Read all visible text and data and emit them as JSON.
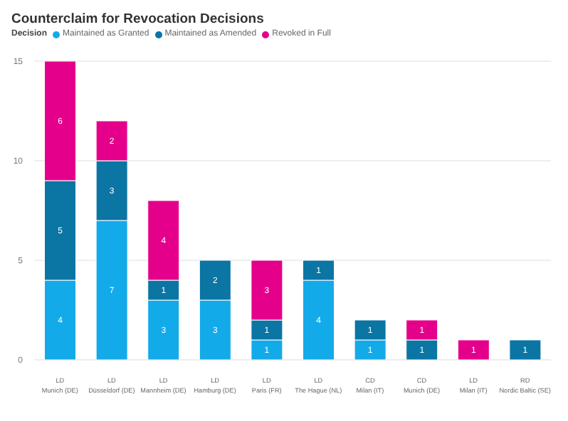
{
  "chart_data": {
    "type": "bar",
    "title": "Counterclaim for Revocation Decisions",
    "legend_title": "Decision",
    "legend": "top left",
    "categories": [
      "LD Munich (DE)",
      "LD Düsseldorf (DE)",
      "LD Mannheim (DE)",
      "LD Hamburg (DE)",
      "LD Paris (FR)",
      "LD The Hague (NL)",
      "CD Milan (IT)",
      "CD Munich (DE)",
      "LD Milan (IT)",
      "RD Nordic Baltic (SE)"
    ],
    "stacked": true,
    "data_labels": true,
    "grid": "y",
    "ylim": [
      0,
      15
    ],
    "yticks": [
      0,
      5,
      10,
      15
    ],
    "series": [
      {
        "name": "Maintained as Granted",
        "color": "#13aaea",
        "values": [
          4,
          7,
          3,
          3,
          1,
          4,
          1,
          null,
          null,
          null
        ]
      },
      {
        "name": "Maintained as Amended",
        "color": "#0b75a3",
        "values": [
          5,
          3,
          1,
          2,
          1,
          1,
          1,
          1,
          null,
          1
        ]
      },
      {
        "name": "Revoked in Full",
        "color": "#e5008b",
        "values": [
          6,
          2,
          4,
          null,
          3,
          null,
          null,
          1,
          1,
          null
        ]
      }
    ]
  }
}
